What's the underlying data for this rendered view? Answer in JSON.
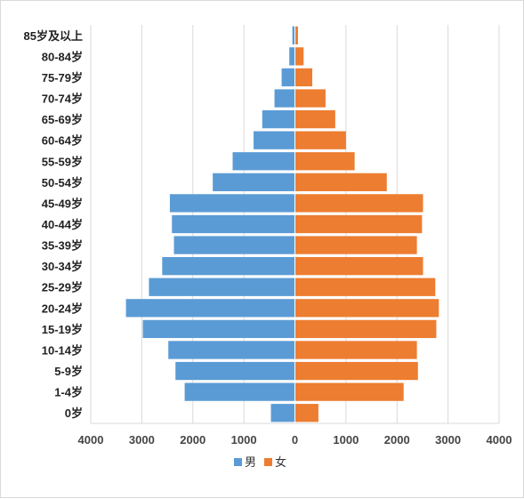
{
  "chart_data": {
    "type": "bar",
    "orientation": "horizontal",
    "subtype": "population-pyramid",
    "categories": [
      "85岁及以上",
      "80-84岁",
      "75-79岁",
      "70-74岁",
      "65-69岁",
      "60-64岁",
      "55-59岁",
      "50-54岁",
      "45-49岁",
      "40-44岁",
      "35-39岁",
      "30-34岁",
      "25-29岁",
      "20-24岁",
      "15-19岁",
      "10-14岁",
      "5-9岁",
      "1-4岁",
      "0岁"
    ],
    "series": [
      {
        "name": "男",
        "color": "#5b9bd5",
        "side": "left",
        "values": [
          50,
          110,
          260,
          400,
          640,
          810,
          1220,
          1610,
          2450,
          2410,
          2370,
          2600,
          2860,
          3310,
          2980,
          2480,
          2340,
          2160,
          470
        ]
      },
      {
        "name": "女",
        "color": "#ed7d31",
        "side": "right",
        "values": [
          60,
          170,
          340,
          600,
          790,
          1000,
          1170,
          1800,
          2510,
          2490,
          2390,
          2510,
          2750,
          2820,
          2770,
          2390,
          2410,
          2130,
          460
        ]
      }
    ],
    "xticks": [
      "4000",
      "3000",
      "2000",
      "1000",
      "0",
      "1000",
      "2000",
      "3000",
      "4000"
    ],
    "xlim": [
      -4000,
      4000
    ],
    "grid": true,
    "legend_position": "bottom",
    "legend": [
      "男",
      "女"
    ]
  }
}
